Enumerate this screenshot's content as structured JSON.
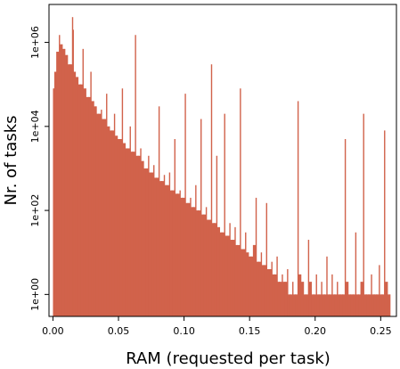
{
  "chart_data": {
    "type": "bar",
    "title": "",
    "xlabel": "RAM (requested per task)",
    "ylabel": "Nr. of tasks",
    "x_scale": "linear",
    "y_scale": "log10",
    "xlim": [
      -0.003,
      0.262
    ],
    "ylim": [
      0.3,
      8000000
    ],
    "xticks": [
      0.0,
      0.05,
      0.1,
      0.15,
      0.2,
      0.25
    ],
    "xtick_labels": [
      "0.00",
      "0.05",
      "0.10",
      "0.15",
      "0.20",
      "0.25"
    ],
    "yticks": [
      1,
      100,
      10000,
      1000000
    ],
    "ytick_labels": [
      "1e+00",
      "1e+02",
      "1e+04",
      "1e+06"
    ],
    "grid": false,
    "bar_color": "#d1624b",
    "series": [
      {
        "x": [
          0.0005,
          0.0015,
          0.003,
          0.005,
          0.007,
          0.009,
          0.011,
          0.013,
          0.015,
          0.0155,
          0.017,
          0.019,
          0.021,
          0.023,
          0.025,
          0.027,
          0.029,
          0.031,
          0.033,
          0.035,
          0.037,
          0.039,
          0.041,
          0.043,
          0.045,
          0.047,
          0.049,
          0.051,
          0.053,
          0.055,
          0.057,
          0.059,
          0.061,
          0.063,
          0.065,
          0.067,
          0.069,
          0.071,
          0.073,
          0.075,
          0.077,
          0.079,
          0.081,
          0.083,
          0.085,
          0.087,
          0.089,
          0.091,
          0.093,
          0.095,
          0.097,
          0.099,
          0.101,
          0.103,
          0.105,
          0.107,
          0.109,
          0.111,
          0.113,
          0.115,
          0.117,
          0.119,
          0.121,
          0.123,
          0.125,
          0.127,
          0.129,
          0.131,
          0.133,
          0.135,
          0.137,
          0.139,
          0.141,
          0.143,
          0.145,
          0.147,
          0.149,
          0.151,
          0.153,
          0.155,
          0.157,
          0.159,
          0.161,
          0.163,
          0.165,
          0.167,
          0.169,
          0.171,
          0.173,
          0.175,
          0.177,
          0.179,
          0.181,
          0.183,
          0.185,
          0.187,
          0.189,
          0.191,
          0.193,
          0.195,
          0.197,
          0.199,
          0.201,
          0.203,
          0.205,
          0.207,
          0.209,
          0.211,
          0.213,
          0.215,
          0.217,
          0.219,
          0.221,
          0.223,
          0.225,
          0.227,
          0.229,
          0.231,
          0.233,
          0.235,
          0.237,
          0.239,
          0.241,
          0.243,
          0.245,
          0.247,
          0.249,
          0.251,
          0.253,
          0.255,
          0.257
        ],
        "y": [
          80000,
          200000,
          600000,
          1500000,
          900000,
          700000,
          500000,
          300000,
          4000000,
          2000000,
          200000,
          150000,
          100000,
          700000,
          80000,
          50000,
          200000,
          40000,
          30000,
          20000,
          25000,
          15000,
          60000,
          10000,
          8000,
          20000,
          6000,
          5000,
          80000,
          4000,
          3000,
          10000,
          2500,
          1500000,
          2000,
          3000,
          1500,
          1000,
          2000,
          800,
          1200,
          600,
          30000,
          500,
          700,
          400,
          800,
          300,
          5000,
          250,
          300,
          200,
          60000,
          150,
          200,
          120,
          400,
          100,
          15000,
          80,
          120,
          60,
          300000,
          50,
          2000,
          40,
          30,
          20000,
          25,
          50,
          20,
          40,
          15,
          80000,
          12,
          30,
          10,
          8,
          15,
          200,
          6,
          10,
          5,
          150,
          4,
          6,
          3,
          8,
          2,
          3,
          2,
          4,
          1,
          2,
          1,
          40000,
          3,
          2,
          1,
          20,
          2,
          1,
          3,
          1,
          2,
          1,
          8,
          1,
          3,
          1,
          2,
          1,
          1,
          5000,
          2,
          1,
          1,
          30,
          1,
          2,
          20000,
          1,
          1,
          3,
          1,
          1,
          5,
          1,
          8000,
          2,
          1
        ]
      }
    ]
  }
}
